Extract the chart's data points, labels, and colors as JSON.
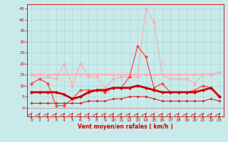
{
  "x": [
    0,
    1,
    2,
    3,
    4,
    5,
    6,
    7,
    8,
    9,
    10,
    11,
    12,
    13,
    14,
    15,
    16,
    17,
    18,
    19,
    20,
    21,
    22,
    23
  ],
  "series": [
    {
      "name": "max_rafales",
      "color": "#ffaaaa",
      "linewidth": 0.8,
      "markersize": 2.5,
      "y": [
        15,
        13,
        14,
        13,
        20,
        10,
        20,
        14,
        14,
        9,
        13,
        14,
        14,
        14,
        45,
        39,
        15,
        13,
        13,
        13,
        11,
        15,
        15,
        16
      ]
    },
    {
      "name": "flat_avg",
      "color": "#ffaaaa",
      "linewidth": 1.2,
      "markersize": 2.0,
      "y": [
        15,
        15,
        15,
        15,
        15,
        15,
        15,
        15,
        15,
        15,
        15,
        15,
        15,
        15,
        15,
        15,
        15,
        15,
        15,
        15,
        15,
        15,
        15,
        16
      ]
    },
    {
      "name": "moy_rafales",
      "color": "#ff4444",
      "linewidth": 0.9,
      "markersize": 2.5,
      "y": [
        11,
        13,
        11,
        1,
        1,
        4,
        8,
        8,
        8,
        7,
        9,
        9,
        14,
        28,
        23,
        9,
        11,
        7,
        7,
        7,
        8,
        10,
        9,
        5
      ]
    },
    {
      "name": "moy_vent",
      "color": "#cc0000",
      "linewidth": 2.0,
      "markersize": 2.5,
      "y": [
        7,
        7,
        7,
        7,
        6,
        4,
        5,
        7,
        8,
        8,
        9,
        9,
        9,
        10,
        9,
        8,
        7,
        7,
        7,
        7,
        7,
        8,
        9,
        5
      ]
    },
    {
      "name": "min_vent",
      "color": "#dd2222",
      "linewidth": 0.8,
      "markersize": 2.0,
      "y": [
        2,
        2,
        2,
        2,
        2,
        2,
        2,
        3,
        3,
        3,
        4,
        4,
        5,
        5,
        5,
        4,
        3,
        3,
        3,
        3,
        3,
        3,
        4,
        3
      ]
    }
  ],
  "xlabel": "Vent moyen/en rafales ( km/h )",
  "xlim": [
    -0.5,
    23.5
  ],
  "ylim": [
    -4,
    47
  ],
  "yticks": [
    0,
    5,
    10,
    15,
    20,
    25,
    30,
    35,
    40,
    45
  ],
  "xticks": [
    0,
    1,
    2,
    3,
    4,
    5,
    6,
    7,
    8,
    9,
    10,
    11,
    12,
    13,
    14,
    15,
    16,
    17,
    18,
    19,
    20,
    21,
    22,
    23
  ],
  "grid_color": "#b0d8d8",
  "bg_color": "#c8eaea",
  "tick_color": "#cc0000",
  "label_color": "#cc0000",
  "arrow_color": "#cc0000"
}
